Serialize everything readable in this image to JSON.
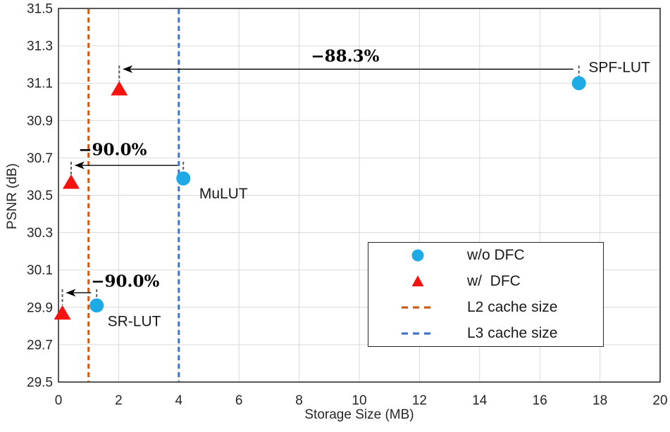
{
  "figure": {
    "background": "#ffffff",
    "border_color": "#2f2f2f",
    "grid_color": "#d9d9d9"
  },
  "chart_data": {
    "type": "scatter",
    "title": "",
    "xlabel": "Storage Size (MB)",
    "ylabel": "PSNR (dB)",
    "xlim": [
      0,
      20
    ],
    "ylim": [
      29.5,
      31.5
    ],
    "xticks": [
      0,
      2,
      4,
      6,
      8,
      10,
      12,
      14,
      16,
      18,
      20
    ],
    "yticks": [
      29.5,
      29.7,
      29.9,
      30.1,
      30.3,
      30.5,
      30.7,
      30.9,
      31.1,
      31.3,
      31.5
    ],
    "grid": true,
    "legend_position": "bottom-right",
    "series": [
      {
        "name": "w/o DFC",
        "marker": "circle",
        "color": "#1EAAE4",
        "points": [
          {
            "x": 1.27,
            "y": 29.91
          },
          {
            "x": 4.15,
            "y": 30.59
          },
          {
            "x": 17.3,
            "y": 31.1
          }
        ]
      },
      {
        "name": "w/  DFC",
        "marker": "triangle",
        "color": "#F51310",
        "points": [
          {
            "x": 0.13,
            "y": 29.87
          },
          {
            "x": 0.42,
            "y": 30.57
          },
          {
            "x": 2.02,
            "y": 31.07
          }
        ]
      }
    ],
    "vlines": [
      {
        "name": "L2 cache size",
        "x": 1,
        "color": "#CB5A1D",
        "style": "dashed"
      },
      {
        "name": "L3 cache size",
        "x": 4,
        "color": "#4472C4",
        "style": "dashed"
      }
    ],
    "annotations": [
      {
        "label": "−88.3%",
        "y": 31.175,
        "x_source": 17.3,
        "x_target": 2.02,
        "label_x": 9.53,
        "label_y": 31.245
      },
      {
        "label": "−90.0%",
        "y": 30.66,
        "x_source": 4.15,
        "x_target": 0.42,
        "label_x": 1.8,
        "label_y": 30.745
      },
      {
        "label": "−90.0%",
        "y": 29.978,
        "x_source": 1.27,
        "x_target": 0.13,
        "label_x": 2.22,
        "label_y": 30.04
      }
    ],
    "point_labels": [
      {
        "text": "SPF-LUT",
        "x": 17.62,
        "y": 31.185,
        "anchor": "start"
      },
      {
        "text": "MuLUT",
        "x": 4.68,
        "y": 30.51,
        "anchor": "start"
      },
      {
        "text": "SR-LUT",
        "x": 1.63,
        "y": 29.825,
        "anchor": "start"
      }
    ],
    "legend": {
      "items": [
        {
          "label": "w/o DFC",
          "marker": "circle",
          "color": "#1EAAE4"
        },
        {
          "label": "w/  DFC",
          "marker": "triangle",
          "color": "#F51310"
        },
        {
          "label": "L2 cache size",
          "marker": "dashed-line",
          "color": "#CB5A1D"
        },
        {
          "label": "L3 cache size",
          "marker": "dashed-line",
          "color": "#4472C4"
        }
      ]
    }
  }
}
